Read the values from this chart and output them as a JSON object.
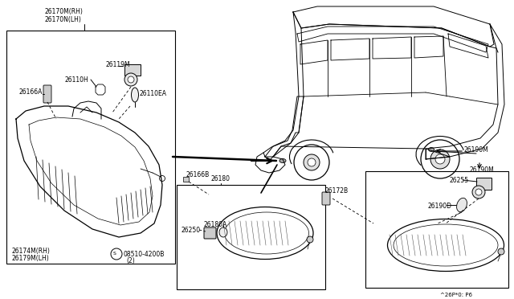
{
  "bg_color": "#ffffff",
  "parts": {
    "26170M_RH": "26170M(RH)",
    "26170N_LH": "26170N(LH)",
    "26119M": "26119M",
    "26110H": "26110H",
    "26166A": "26166A",
    "26110EA": "26110EA",
    "26174M_RH": "26174M(RH)",
    "26179M_LH": "26179M(LH)",
    "08510": "08510-4200B",
    "08510_2": "(2)",
    "26166B": "26166B",
    "26180": "26180",
    "26250": "26250",
    "26180A": "26180A",
    "26172B": "26172B",
    "26190M": "26190M",
    "26255": "26255",
    "26190D": "26190D",
    "stamp": "^26P*0: P6"
  }
}
